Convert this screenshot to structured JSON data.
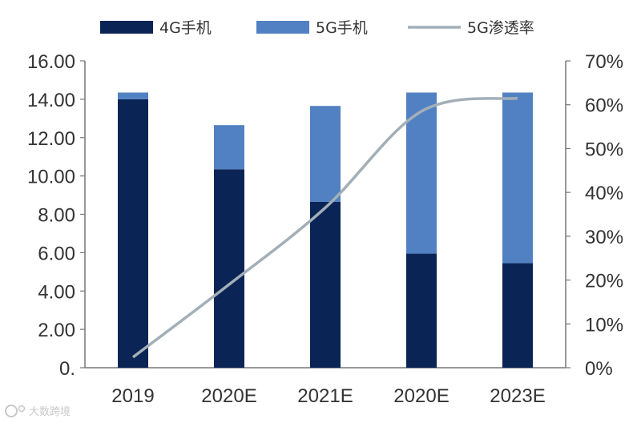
{
  "chart_data": {
    "type": "bar",
    "stacked": true,
    "categories": [
      "2019",
      "2020E",
      "2021E",
      "2020E",
      "2023E"
    ],
    "series": [
      {
        "name": "4G手机",
        "kind": "bar",
        "color": "#0b2456",
        "values": [
          14.0,
          10.35,
          8.65,
          5.95,
          5.45
        ]
      },
      {
        "name": "5G手机",
        "kind": "bar",
        "color": "#5181c2",
        "values": [
          0.35,
          2.3,
          5.0,
          8.4,
          8.9
        ]
      },
      {
        "name": "5G渗透率",
        "kind": "line",
        "axis": "right",
        "color": "#a3afb8",
        "values": [
          2.4,
          19.0,
          36.5,
          58.5,
          61.5
        ]
      }
    ],
    "ylim": [
      0,
      16
    ],
    "yticks": [
      "0.",
      "2.00",
      "4.00",
      "6.00",
      "8.00",
      "10.00",
      "12.00",
      "14.00",
      "16.00"
    ],
    "y2lim": [
      0,
      70
    ],
    "y2ticks": [
      "0%",
      "10%",
      "20%",
      "30%",
      "40%",
      "50%",
      "60%",
      "70%"
    ],
    "legend_position": "top"
  },
  "watermark": {
    "text": "大数跨境"
  }
}
